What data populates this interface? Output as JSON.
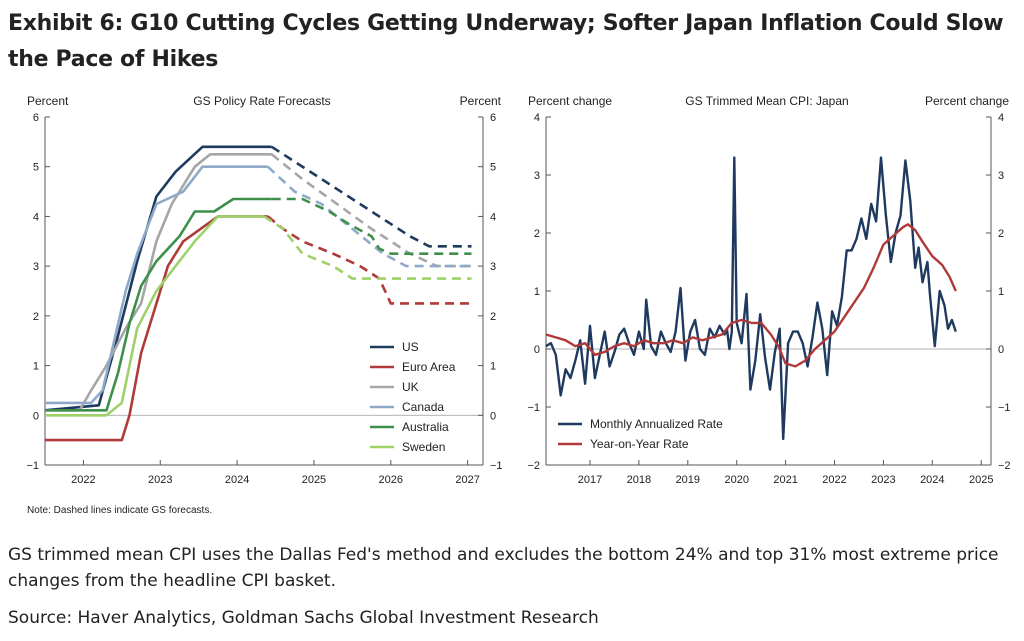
{
  "exhibit": {
    "title": "Exhibit 6: G10 Cutting Cycles Getting Underway; Softer Japan Inflation Could Slow the Pace of Hikes",
    "note": "Note: Dashed lines indicate GS forecasts.",
    "description": "GS trimmed mean CPI uses the Dallas Fed's method and excludes the bottom 24% and top 31% most extreme price changes from the headline CPI basket.",
    "source": "Source: Haver Analytics, Goldman Sachs Global Investment Research"
  },
  "chart_data": [
    {
      "type": "line",
      "title": "GS Policy Rate Forecasts",
      "ylabel_left": "Percent",
      "ylabel_right": "Percent",
      "ylim": [
        -1,
        6
      ],
      "yticks": [
        -1,
        0,
        1,
        2,
        3,
        4,
        5,
        6
      ],
      "xlim": [
        2021.5,
        2027.2
      ],
      "xticks": [
        2022,
        2023,
        2024,
        2025,
        2026,
        2027
      ],
      "forecast_start_note": "Dashed lines indicate GS forecasts",
      "legend_position": "lower-right",
      "series": [
        {
          "name": "US",
          "color": "#1f3a5f",
          "actual": [
            [
              2021.5,
              0.1
            ],
            [
              2022.2,
              0.2
            ],
            [
              2022.45,
              1.6
            ],
            [
              2022.7,
              3.1
            ],
            [
              2022.95,
              4.4
            ],
            [
              2023.2,
              4.9
            ],
            [
              2023.55,
              5.4
            ],
            [
              2024.45,
              5.4
            ]
          ],
          "forecast": [
            [
              2024.45,
              5.4
            ],
            [
              2024.75,
              5.1
            ],
            [
              2025.25,
              4.6
            ],
            [
              2025.75,
              4.1
            ],
            [
              2026.25,
              3.6
            ],
            [
              2026.5,
              3.4
            ],
            [
              2027.05,
              3.4
            ]
          ]
        },
        {
          "name": "Euro Area",
          "color": "#b03a3a",
          "actual": [
            [
              2021.5,
              -0.5
            ],
            [
              2022.5,
              -0.5
            ],
            [
              2022.6,
              0.0
            ],
            [
              2022.75,
              1.25
            ],
            [
              2022.9,
              2.0
            ],
            [
              2023.1,
              3.0
            ],
            [
              2023.3,
              3.5
            ],
            [
              2023.75,
              4.0
            ],
            [
              2024.4,
              4.0
            ]
          ],
          "forecast": [
            [
              2024.4,
              4.0
            ],
            [
              2024.6,
              3.75
            ],
            [
              2024.85,
              3.5
            ],
            [
              2025.25,
              3.25
            ],
            [
              2025.6,
              3.0
            ],
            [
              2025.85,
              2.75
            ],
            [
              2026.0,
              2.25
            ],
            [
              2027.05,
              2.25
            ]
          ]
        },
        {
          "name": "UK",
          "color": "#a6a6a6",
          "actual": [
            [
              2021.5,
              0.1
            ],
            [
              2021.95,
              0.1
            ],
            [
              2022.1,
              0.5
            ],
            [
              2022.3,
              1.0
            ],
            [
              2022.55,
              1.75
            ],
            [
              2022.75,
              2.25
            ],
            [
              2022.95,
              3.5
            ],
            [
              2023.15,
              4.25
            ],
            [
              2023.45,
              5.0
            ],
            [
              2023.65,
              5.25
            ],
            [
              2024.45,
              5.25
            ]
          ],
          "forecast": [
            [
              2024.45,
              5.25
            ],
            [
              2024.85,
              4.75
            ],
            [
              2025.3,
              4.25
            ],
            [
              2025.75,
              3.75
            ],
            [
              2026.25,
              3.25
            ],
            [
              2026.6,
              3.0
            ],
            [
              2027.05,
              3.0
            ]
          ]
        },
        {
          "name": "Canada",
          "color": "#8fa9c9",
          "actual": [
            [
              2021.5,
              0.25
            ],
            [
              2022.1,
              0.25
            ],
            [
              2022.25,
              0.5
            ],
            [
              2022.4,
              1.5
            ],
            [
              2022.55,
              2.5
            ],
            [
              2022.7,
              3.25
            ],
            [
              2022.95,
              4.25
            ],
            [
              2023.3,
              4.5
            ],
            [
              2023.55,
              5.0
            ],
            [
              2024.4,
              5.0
            ]
          ],
          "forecast": [
            [
              2024.4,
              5.0
            ],
            [
              2024.75,
              4.5
            ],
            [
              2025.1,
              4.25
            ],
            [
              2025.5,
              3.75
            ],
            [
              2025.9,
              3.25
            ],
            [
              2026.2,
              3.0
            ],
            [
              2027.05,
              3.0
            ]
          ]
        },
        {
          "name": "Australia",
          "color": "#3d8f4a",
          "actual": [
            [
              2021.5,
              0.1
            ],
            [
              2022.3,
              0.1
            ],
            [
              2022.45,
              0.85
            ],
            [
              2022.6,
              1.85
            ],
            [
              2022.75,
              2.6
            ],
            [
              2022.95,
              3.1
            ],
            [
              2023.25,
              3.6
            ],
            [
              2023.45,
              4.1
            ],
            [
              2023.7,
              4.1
            ],
            [
              2023.95,
              4.35
            ],
            [
              2024.45,
              4.35
            ]
          ],
          "forecast": [
            [
              2024.45,
              4.35
            ],
            [
              2024.85,
              4.35
            ],
            [
              2025.2,
              4.1
            ],
            [
              2025.45,
              3.85
            ],
            [
              2025.75,
              3.6
            ],
            [
              2025.85,
              3.35
            ],
            [
              2026.0,
              3.25
            ],
            [
              2027.05,
              3.25
            ]
          ]
        },
        {
          "name": "Sweden",
          "color": "#9ed16a",
          "actual": [
            [
              2021.5,
              0.0
            ],
            [
              2022.3,
              0.0
            ],
            [
              2022.5,
              0.25
            ],
            [
              2022.7,
              1.75
            ],
            [
              2022.95,
              2.5
            ],
            [
              2023.2,
              3.0
            ],
            [
              2023.45,
              3.5
            ],
            [
              2023.75,
              4.0
            ],
            [
              2024.35,
              4.0
            ]
          ],
          "forecast": [
            [
              2024.35,
              4.0
            ],
            [
              2024.6,
              3.75
            ],
            [
              2024.85,
              3.25
            ],
            [
              2025.25,
              3.0
            ],
            [
              2025.5,
              2.75
            ],
            [
              2025.85,
              2.75
            ],
            [
              2027.05,
              2.75
            ]
          ]
        }
      ]
    },
    {
      "type": "line",
      "title": "GS Trimmed Mean CPI: Japan",
      "ylabel_left": "Percent change",
      "ylabel_right": "Percent change",
      "ylim": [
        -2,
        4
      ],
      "yticks": [
        -2,
        -1,
        0,
        1,
        2,
        3,
        4
      ],
      "xlim": [
        2016.1,
        2025.2
      ],
      "xticks": [
        2017,
        2018,
        2019,
        2020,
        2021,
        2022,
        2023,
        2024,
        2025
      ],
      "legend_position": "lower-left",
      "series": [
        {
          "name": "Monthly Annualized Rate",
          "color": "#1f3a5f",
          "points": [
            [
              2016.1,
              0.05
            ],
            [
              2016.2,
              0.1
            ],
            [
              2016.3,
              -0.1
            ],
            [
              2016.4,
              -0.8
            ],
            [
              2016.5,
              -0.35
            ],
            [
              2016.6,
              -0.5
            ],
            [
              2016.7,
              -0.2
            ],
            [
              2016.8,
              0.15
            ],
            [
              2016.9,
              -0.6
            ],
            [
              2017.0,
              0.4
            ],
            [
              2017.1,
              -0.5
            ],
            [
              2017.2,
              -0.1
            ],
            [
              2017.3,
              0.3
            ],
            [
              2017.4,
              -0.3
            ],
            [
              2017.5,
              -0.05
            ],
            [
              2017.6,
              0.25
            ],
            [
              2017.7,
              0.35
            ],
            [
              2017.8,
              0.1
            ],
            [
              2017.9,
              -0.1
            ],
            [
              2018.0,
              0.3
            ],
            [
              2018.1,
              0.0
            ],
            [
              2018.15,
              0.85
            ],
            [
              2018.25,
              0.05
            ],
            [
              2018.35,
              -0.1
            ],
            [
              2018.45,
              0.3
            ],
            [
              2018.55,
              0.1
            ],
            [
              2018.65,
              -0.05
            ],
            [
              2018.75,
              0.3
            ],
            [
              2018.85,
              1.05
            ],
            [
              2018.95,
              -0.2
            ],
            [
              2019.05,
              0.3
            ],
            [
              2019.15,
              0.5
            ],
            [
              2019.25,
              0.0
            ],
            [
              2019.35,
              -0.1
            ],
            [
              2019.45,
              0.35
            ],
            [
              2019.55,
              0.2
            ],
            [
              2019.65,
              0.4
            ],
            [
              2019.75,
              0.25
            ],
            [
              2019.8,
              0.35
            ],
            [
              2019.85,
              0.0
            ],
            [
              2019.9,
              0.3
            ],
            [
              2019.95,
              3.3
            ],
            [
              2020.0,
              0.45
            ],
            [
              2020.1,
              0.1
            ],
            [
              2020.2,
              0.95
            ],
            [
              2020.28,
              -0.7
            ],
            [
              2020.38,
              -0.2
            ],
            [
              2020.48,
              0.6
            ],
            [
              2020.58,
              -0.15
            ],
            [
              2020.68,
              -0.7
            ],
            [
              2020.78,
              -0.05
            ],
            [
              2020.88,
              0.35
            ],
            [
              2020.95,
              -1.55
            ],
            [
              2021.05,
              0.1
            ],
            [
              2021.15,
              0.3
            ],
            [
              2021.25,
              0.3
            ],
            [
              2021.35,
              0.1
            ],
            [
              2021.45,
              -0.3
            ],
            [
              2021.55,
              0.2
            ],
            [
              2021.65,
              0.8
            ],
            [
              2021.75,
              0.35
            ],
            [
              2021.85,
              -0.45
            ],
            [
              2021.95,
              0.65
            ],
            [
              2022.05,
              0.4
            ],
            [
              2022.15,
              0.9
            ],
            [
              2022.25,
              1.7
            ],
            [
              2022.35,
              1.7
            ],
            [
              2022.45,
              1.9
            ],
            [
              2022.55,
              2.25
            ],
            [
              2022.65,
              1.9
            ],
            [
              2022.75,
              2.5
            ],
            [
              2022.85,
              2.2
            ],
            [
              2022.95,
              3.3
            ],
            [
              2023.05,
              2.3
            ],
            [
              2023.15,
              1.5
            ],
            [
              2023.25,
              2.0
            ],
            [
              2023.35,
              2.3
            ],
            [
              2023.45,
              3.25
            ],
            [
              2023.55,
              2.55
            ],
            [
              2023.65,
              1.4
            ],
            [
              2023.72,
              1.75
            ],
            [
              2023.8,
              1.15
            ],
            [
              2023.9,
              1.5
            ],
            [
              2023.95,
              0.95
            ],
            [
              2024.05,
              0.05
            ],
            [
              2024.15,
              1.0
            ],
            [
              2024.25,
              0.75
            ],
            [
              2024.32,
              0.35
            ],
            [
              2024.4,
              0.5
            ],
            [
              2024.48,
              0.3
            ]
          ]
        },
        {
          "name": "Year-on-Year Rate",
          "color": "#b03a3a",
          "points": [
            [
              2016.1,
              0.25
            ],
            [
              2016.3,
              0.2
            ],
            [
              2016.5,
              0.15
            ],
            [
              2016.7,
              0.05
            ],
            [
              2016.9,
              0.1
            ],
            [
              2017.1,
              -0.1
            ],
            [
              2017.3,
              -0.05
            ],
            [
              2017.5,
              0.05
            ],
            [
              2017.7,
              0.1
            ],
            [
              2017.9,
              0.05
            ],
            [
              2018.1,
              0.15
            ],
            [
              2018.3,
              0.1
            ],
            [
              2018.5,
              0.1
            ],
            [
              2018.7,
              0.15
            ],
            [
              2018.9,
              0.1
            ],
            [
              2019.1,
              0.2
            ],
            [
              2019.3,
              0.15
            ],
            [
              2019.5,
              0.2
            ],
            [
              2019.7,
              0.25
            ],
            [
              2019.9,
              0.45
            ],
            [
              2020.1,
              0.5
            ],
            [
              2020.3,
              0.45
            ],
            [
              2020.5,
              0.45
            ],
            [
              2020.7,
              0.25
            ],
            [
              2020.85,
              0.05
            ],
            [
              2021.0,
              -0.25
            ],
            [
              2021.2,
              -0.3
            ],
            [
              2021.4,
              -0.2
            ],
            [
              2021.6,
              0.0
            ],
            [
              2021.8,
              0.15
            ],
            [
              2022.0,
              0.3
            ],
            [
              2022.2,
              0.55
            ],
            [
              2022.4,
              0.8
            ],
            [
              2022.6,
              1.05
            ],
            [
              2022.8,
              1.4
            ],
            [
              2023.0,
              1.8
            ],
            [
              2023.2,
              1.95
            ],
            [
              2023.4,
              2.1
            ],
            [
              2023.5,
              2.15
            ],
            [
              2023.65,
              2.05
            ],
            [
              2023.8,
              1.85
            ],
            [
              2024.0,
              1.6
            ],
            [
              2024.2,
              1.45
            ],
            [
              2024.35,
              1.25
            ],
            [
              2024.48,
              1.0
            ]
          ]
        }
      ]
    }
  ]
}
